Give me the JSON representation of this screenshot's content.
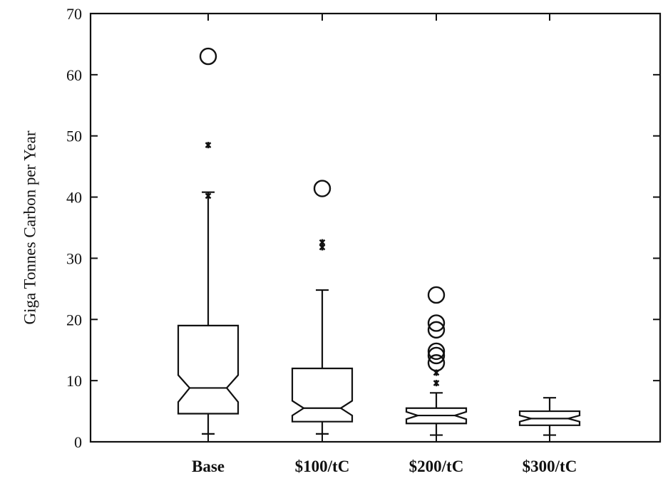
{
  "chart_data": {
    "type": "box",
    "title": "",
    "xlabel": "",
    "ylabel": "Giga Tonnes Carbon per Year",
    "ylim": [
      0,
      70
    ],
    "yticks": [
      0,
      10,
      20,
      30,
      40,
      50,
      60,
      70
    ],
    "grid": false,
    "notched": true,
    "categories": [
      "Base",
      "$100/tC",
      "$200/tC",
      "$300/tC"
    ],
    "boxes": [
      {
        "category": "Base",
        "whisker_low": 1.3,
        "q1": 4.6,
        "median": 8.8,
        "q3": 19.0,
        "whisker_high": 40.8,
        "notch_low": 6.5,
        "notch_high": 10.9,
        "outliers_star": [
          40.2,
          48.5
        ],
        "outliers_circle": [
          63.0
        ]
      },
      {
        "category": "$100/tC",
        "whisker_low": 1.3,
        "q1": 3.3,
        "median": 5.5,
        "q3": 12.0,
        "whisker_high": 24.8,
        "notch_low": 4.3,
        "notch_high": 6.7,
        "outliers_star": [
          31.8,
          32.6
        ],
        "outliers_circle": [
          41.4
        ]
      },
      {
        "category": "$200/tC",
        "whisker_low": 1.1,
        "q1": 3.0,
        "median": 4.3,
        "q3": 5.5,
        "whisker_high": 8.0,
        "notch_low": 3.7,
        "notch_high": 4.9,
        "outliers_star": [
          9.6,
          11.3
        ],
        "outliers_circle": [
          12.9,
          14.1,
          14.8,
          18.3,
          19.4,
          24.0
        ]
      },
      {
        "category": "$300/tC",
        "whisker_low": 1.1,
        "q1": 2.7,
        "median": 3.8,
        "q3": 5.0,
        "whisker_high": 7.2,
        "notch_low": 3.3,
        "notch_high": 4.3,
        "outliers_star": [],
        "outliers_circle": []
      }
    ]
  }
}
